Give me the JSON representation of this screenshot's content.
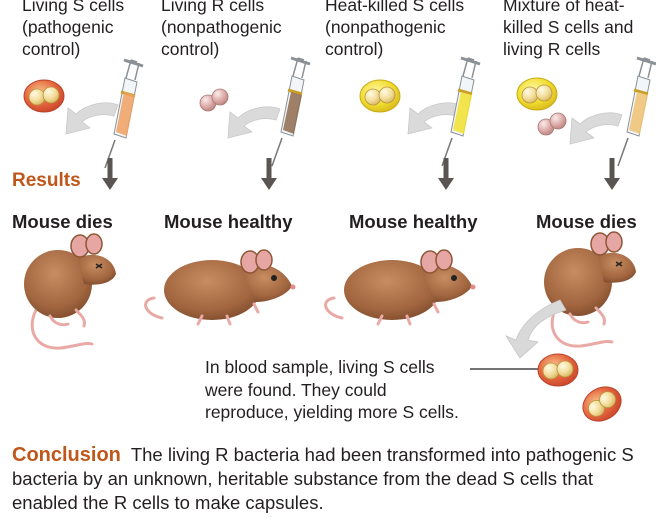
{
  "columns": [
    {
      "heading": "Living S cells\n(pathogenic\ncontrol)",
      "result": "Mouse dies"
    },
    {
      "heading": "Living R cells\n(nonpathogenic\ncontrol)",
      "result": "Mouse healthy"
    },
    {
      "heading": "Heat-killed S cells\n(nonpathogenic\ncontrol)",
      "result": "Mouse healthy"
    },
    {
      "heading": "Mixture of heat-\nkilled S cells and\nliving R cells",
      "result": "Mouse dies"
    }
  ],
  "results_label": "Results",
  "blood_note": "In blood sample, living S cells\nwere found. They could\nreproduce, yielding more S cells.",
  "conclusion": {
    "heading": "Conclusion",
    "text": "The living R bacteria had been transformed into pathogenic S bacteria by an unknown, heritable substance from the dead S cells that enabled the R cells to make capsules."
  },
  "colors": {
    "accent": "#c0571a",
    "living_s_capsule": "#e8684a",
    "heat_killed_capsule": "#f3e03a",
    "r_cell": "#d9a9a6",
    "mouse_fur": "#a86a44",
    "arrow": "#5a5552"
  }
}
